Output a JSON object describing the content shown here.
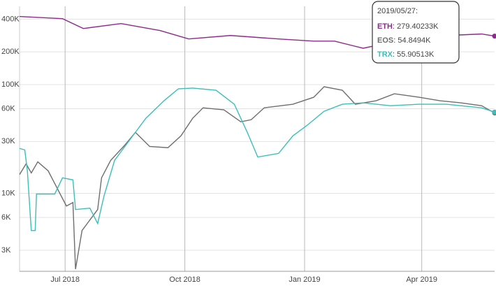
{
  "chart_data": {
    "type": "line",
    "log_scale": true,
    "grid": true,
    "xlim": [
      "2018-05-27",
      "2019-05-27"
    ],
    "xticks": [
      {
        "value": "2018-07-01",
        "label": "Jul 2018"
      },
      {
        "value": "2018-10-01",
        "label": "Oct 2018"
      },
      {
        "value": "2019-01-01",
        "label": "Jan 2019"
      },
      {
        "value": "2019-04-01",
        "label": "Apr 2019"
      }
    ],
    "ylim": [
      1920,
      525000
    ],
    "yticks": [
      {
        "value": 400000,
        "label": "400K"
      },
      {
        "value": 200000,
        "label": "200K"
      },
      {
        "value": 100000,
        "label": "100K"
      },
      {
        "value": 60000,
        "label": "60K"
      },
      {
        "value": 30000,
        "label": "30K"
      },
      {
        "value": 10000,
        "label": "10K"
      },
      {
        "value": 6000,
        "label": "6K"
      },
      {
        "value": 3000,
        "label": "3K"
      }
    ],
    "series": [
      {
        "name": "ETH",
        "color": "#8e2a8e",
        "x": [
          "2018-05-27",
          "2018-06-29",
          "2018-07-15",
          "2018-08-13",
          "2018-09-12",
          "2018-10-04",
          "2018-11-05",
          "2018-12-12",
          "2019-01-08",
          "2019-01-24",
          "2019-02-15",
          "2019-03-08",
          "2019-04-20",
          "2019-05-17",
          "2019-05-27"
        ],
        "values": [
          423000,
          404000,
          328000,
          364000,
          314000,
          263000,
          283000,
          263000,
          251000,
          251000,
          216000,
          244000,
          283000,
          292000,
          279402.33
        ]
      },
      {
        "name": "EOS",
        "color": "#6e6e6e",
        "x": [
          "2018-05-27",
          "2018-06-01",
          "2018-06-05",
          "2018-06-10",
          "2018-06-18",
          "2018-07-02",
          "2018-07-07",
          "2018-07-09",
          "2018-07-14",
          "2018-07-26",
          "2018-07-29",
          "2018-08-05",
          "2018-08-16",
          "2018-08-24",
          "2018-09-04",
          "2018-09-18",
          "2018-09-28",
          "2018-10-07",
          "2018-10-15",
          "2018-10-31",
          "2018-11-13",
          "2018-11-21",
          "2018-12-01",
          "2018-12-23",
          "2019-01-08",
          "2019-01-16",
          "2019-01-30",
          "2019-02-09",
          "2019-02-25",
          "2019-03-11",
          "2019-03-30",
          "2019-04-15",
          "2019-05-01",
          "2019-05-17",
          "2019-05-27"
        ],
        "values": [
          14900,
          18700,
          15400,
          19500,
          16100,
          7650,
          8240,
          2010,
          4550,
          7100,
          13900,
          20100,
          27900,
          36400,
          27000,
          26300,
          33800,
          49000,
          61200,
          58600,
          45500,
          47600,
          61200,
          66000,
          76500,
          95600,
          88800,
          66000,
          71100,
          82400,
          76500,
          71100,
          68000,
          64000,
          54849.4
        ]
      },
      {
        "name": "TRX",
        "color": "#3bbfb8",
        "x": [
          "2018-05-27",
          "2018-05-31",
          "2018-06-02",
          "2018-06-05",
          "2018-06-08",
          "2018-06-09",
          "2018-06-23",
          "2018-06-29",
          "2018-07-07",
          "2018-07-09",
          "2018-07-20",
          "2018-07-26",
          "2018-07-31",
          "2018-08-08",
          "2018-08-22",
          "2018-09-01",
          "2018-09-15",
          "2018-09-26",
          "2018-10-07",
          "2018-10-25",
          "2018-11-08",
          "2018-11-18",
          "2018-11-26",
          "2018-12-12",
          "2018-12-23",
          "2019-01-03",
          "2019-01-16",
          "2019-01-30",
          "2019-02-15",
          "2019-03-08",
          "2019-03-30",
          "2019-04-20",
          "2019-05-17",
          "2019-05-27"
        ],
        "values": [
          25900,
          25100,
          16100,
          4550,
          4550,
          9860,
          9860,
          13900,
          13300,
          7100,
          7320,
          5280,
          9570,
          20100,
          33800,
          49000,
          71100,
          91500,
          92900,
          88800,
          66000,
          36400,
          21600,
          23300,
          33800,
          42300,
          56900,
          66000,
          68000,
          64000,
          66000,
          66000,
          61200,
          55905.13
        ]
      }
    ],
    "tooltip": {
      "title": "2019/05/27:",
      "items": [
        {
          "name": "ETH",
          "value": ": 279.40233K"
        },
        {
          "name": "EOS",
          "value": ": 54.8494K"
        },
        {
          "name": "TRX",
          "value": ": 55.90513K"
        }
      ]
    }
  }
}
